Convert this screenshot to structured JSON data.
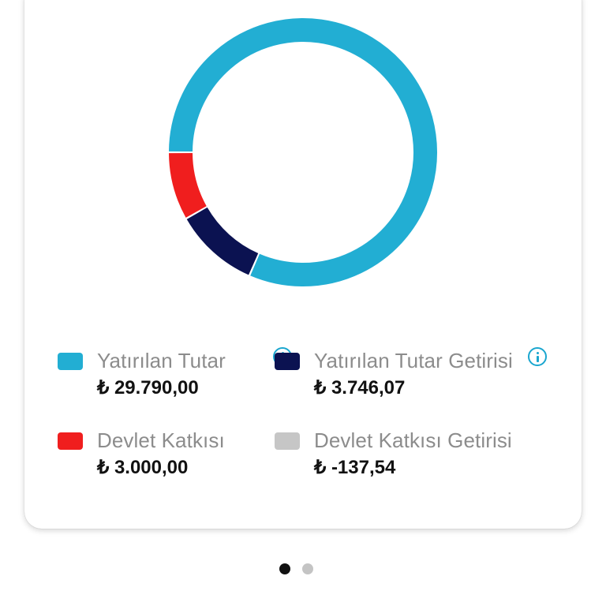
{
  "chart_data": {
    "type": "pie",
    "subtype": "donut",
    "categories": [
      "Yatırılan Tutar",
      "Yatırılan Tutar Getirisi",
      "Devlet Katkısı",
      "Devlet Katkısı Getirisi"
    ],
    "values": [
      29790.0,
      3746.07,
      3000.0,
      -137.54
    ],
    "value_labels": [
      "₺ 29.790,00",
      "₺ 3.746,07",
      "₺ 3.000,00",
      "₺ -137,54"
    ],
    "colors": [
      "#22aed3",
      "#0b1251",
      "#f01e1e",
      "#c6c6c6"
    ],
    "info": [
      true,
      true,
      false,
      false
    ],
    "title": "",
    "legend_position": "bottom"
  },
  "pager": {
    "total": 2,
    "active": 0
  }
}
